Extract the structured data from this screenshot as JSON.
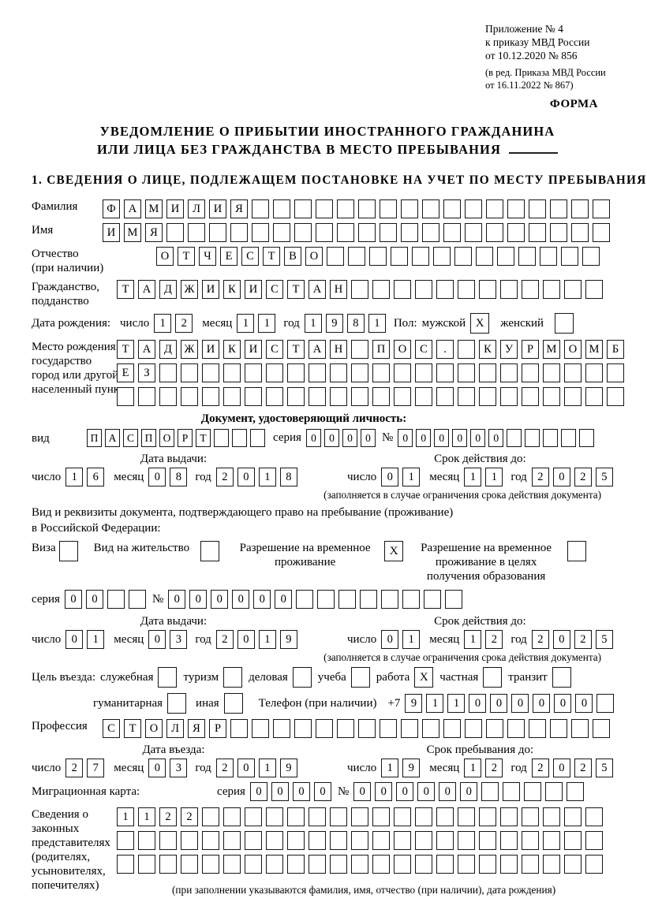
{
  "page": {
    "background": "#ffffff",
    "ink": "#000000"
  },
  "check_mark": "X",
  "date_labels": {
    "day": "число",
    "month": "месяц",
    "year": "год"
  },
  "header": {
    "lines": [
      "Приложение № 4",
      "к приказу МВД России",
      "от 10.12.2020 № 856"
    ],
    "amendment_lines": [
      "(в ред. Приказа МВД России",
      "от 16.11.2022 № 867)"
    ],
    "form_label": "ФОРМА"
  },
  "title": {
    "line1": "УВЕДОМЛЕНИЕ О ПРИБЫТИИ ИНОСТРАННОГО ГРАЖДАНИНА",
    "line2": "ИЛИ ЛИЦА БЕЗ ГРАЖДАНСТВА В МЕСТО ПРЕБЫВАНИЯ"
  },
  "section1_heading": "1. СВЕДЕНИЯ О ЛИЦЕ, ПОДЛЕЖАЩЕМ ПОСТАНОВКЕ НА УЧЕТ ПО МЕСТУ ПРЕБЫВАНИЯ",
  "person": {
    "surname": {
      "label": "Фамилия",
      "value": "ФАМИЛИЯ",
      "boxes": 24
    },
    "given_name": {
      "label": "Имя",
      "value": "ИМЯ",
      "boxes": 24
    },
    "patronymic": {
      "label_line1": "Отчество",
      "label_line2": "(при наличии)",
      "value": "ОТЧЕСТВО",
      "boxes": 21
    },
    "citizenship": {
      "label_line1": "Гражданство,",
      "label_line2": "подданство",
      "value": "ТАДЖИКИСТАН",
      "boxes": 23
    },
    "birth_date": {
      "label": "Дата рождения:",
      "day": {
        "value": "12",
        "boxes": 2
      },
      "month": {
        "value": "11",
        "boxes": 2
      },
      "year": {
        "value": "1981",
        "boxes": 4
      }
    },
    "sex": {
      "label": "Пол:",
      "male_label": "мужской",
      "male_checked": true,
      "female_label": "женский",
      "female_checked": false
    },
    "birth_place": {
      "label_lines": [
        "Место рождения:",
        "государство",
        "город или другой",
        "населенный пункт"
      ],
      "row1": {
        "value": "ТАДЖИКИСТАН ПОС. КУРМОМБ",
        "boxes": 24
      },
      "row2": {
        "value": "ЕЗ",
        "boxes": 24
      },
      "row3": {
        "value": "",
        "boxes": 24
      }
    }
  },
  "identity_doc": {
    "heading": "Документ, удостоверяющий личность:",
    "kind": {
      "label": "вид",
      "value": "ПАСПОРТ",
      "boxes": 10
    },
    "series": {
      "label": "серия",
      "value": "0000",
      "boxes": 4
    },
    "number": {
      "label": "№",
      "value": "000000",
      "boxes": 11
    },
    "issue_date": {
      "heading": "Дата выдачи:",
      "day": {
        "value": "16",
        "boxes": 2
      },
      "month": {
        "value": "08",
        "boxes": 2
      },
      "year": {
        "value": "2018",
        "boxes": 4
      }
    },
    "valid_until": {
      "heading": "Срок действия до:",
      "day": {
        "value": "01",
        "boxes": 2
      },
      "month": {
        "value": "11",
        "boxes": 2
      },
      "year": {
        "value": "2025",
        "boxes": 4
      }
    },
    "note": "(заполняется в случае ограничения срока действия документа)"
  },
  "residence_doc": {
    "intro_line1": "Вид и реквизиты документа, подтверждающего право на пребывание (проживание)",
    "intro_line2": "в Российской Федерации:",
    "options": [
      {
        "lines": [
          "Виза"
        ],
        "checked": false
      },
      {
        "lines": [
          "Вид на жительство"
        ],
        "checked": false
      },
      {
        "lines": [
          "Разрешение на временное",
          "проживание"
        ],
        "checked": true
      },
      {
        "lines": [
          "Разрешение на временное",
          "проживание в целях",
          "получения образования"
        ],
        "checked": false
      }
    ],
    "series": {
      "label": "серия",
      "value": "00",
      "boxes": 4
    },
    "number": {
      "label": "№",
      "value": "000000",
      "boxes": 14
    },
    "issue_date": {
      "heading": "Дата выдачи:",
      "day": {
        "value": "01",
        "boxes": 2
      },
      "month": {
        "value": "03",
        "boxes": 2
      },
      "year": {
        "value": "2019",
        "boxes": 4
      }
    },
    "valid_until": {
      "heading": "Срок действия до:",
      "day": {
        "value": "01",
        "boxes": 2
      },
      "month": {
        "value": "12",
        "boxes": 2
      },
      "year": {
        "value": "2025",
        "boxes": 4
      }
    },
    "note": "(заполняется в случае ограничения срока действия документа)"
  },
  "visit": {
    "purpose_label": "Цель въезда:",
    "purposes": [
      {
        "label": "служебная",
        "checked": false
      },
      {
        "label": "туризм",
        "checked": false
      },
      {
        "label": "деловая",
        "checked": false
      },
      {
        "label": "учеба",
        "checked": false
      },
      {
        "label": "работа",
        "checked": true
      },
      {
        "label": "частная",
        "checked": false
      },
      {
        "label": "транзит",
        "checked": false
      },
      {
        "label": "гуманитарная",
        "checked": false
      },
      {
        "label": "иная",
        "checked": false
      }
    ],
    "phone": {
      "label": "Телефон (при наличии)",
      "prefix": "+7",
      "value": "911000000",
      "boxes": 10
    },
    "profession": {
      "label": "Профессия",
      "value": "СТОЛЯР",
      "boxes": 24
    },
    "entry_date": {
      "heading": "Дата въезда:",
      "day": {
        "value": "27",
        "boxes": 2
      },
      "month": {
        "value": "03",
        "boxes": 2
      },
      "year": {
        "value": "2019",
        "boxes": 4
      }
    },
    "stay_until": {
      "heading": "Срок пребывания до:",
      "day": {
        "value": "19",
        "boxes": 2
      },
      "month": {
        "value": "12",
        "boxes": 2
      },
      "year": {
        "value": "2025",
        "boxes": 4
      }
    }
  },
  "migration_card": {
    "label": "Миграционная карта:",
    "series": {
      "label": "серия",
      "value": "0000",
      "boxes": 4
    },
    "number": {
      "label": "№",
      "value": "000000",
      "boxes": 11
    }
  },
  "representatives": {
    "label_lines": [
      "Сведения о",
      "законных",
      "представителях",
      "(родителях,",
      "усыновителях,",
      "попечителях)"
    ],
    "row1": {
      "value": "1122",
      "boxes": 23
    },
    "row2": {
      "value": "",
      "boxes": 23
    },
    "row3": {
      "value": "",
      "boxes": 23
    },
    "note": "(при заполнении указываются фамилия, имя, отчество (при наличии), дата рождения)"
  }
}
